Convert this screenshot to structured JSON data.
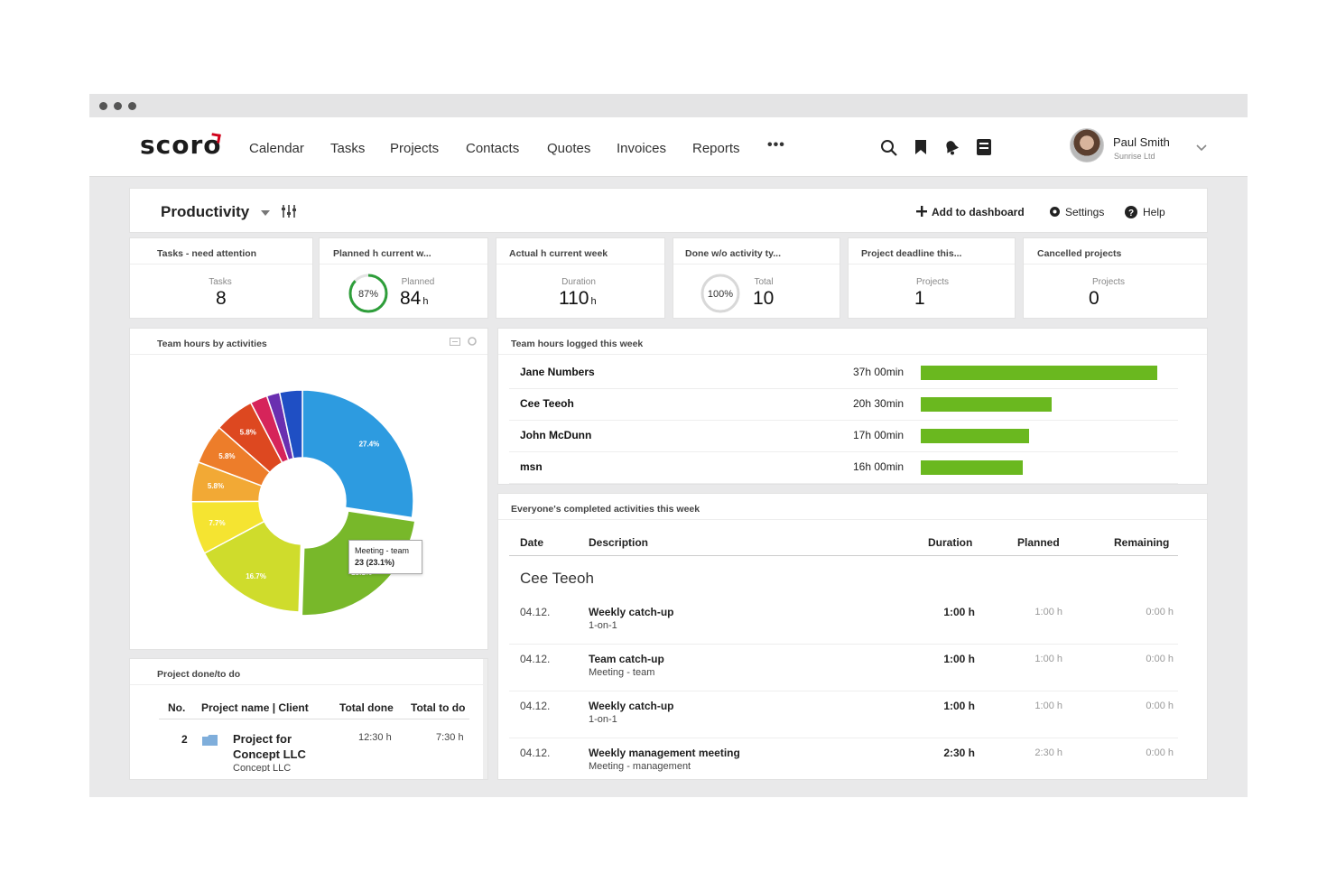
{
  "app": {
    "brand": "scoro",
    "accent_color": "#d0021b"
  },
  "nav": {
    "items": [
      {
        "label": "Calendar"
      },
      {
        "label": "Tasks"
      },
      {
        "label": "Projects"
      },
      {
        "label": "Contacts"
      },
      {
        "label": "Quotes"
      },
      {
        "label": "Invoices"
      },
      {
        "label": "Reports"
      }
    ],
    "more_label": "•••",
    "icons": [
      "search-icon",
      "bookmark-icon",
      "notification-icon",
      "calculator-icon"
    ]
  },
  "user": {
    "name": "Paul Smith",
    "company": "Sunrise Ltd"
  },
  "dashboard": {
    "title": "Productivity",
    "add_label": "Add to dashboard",
    "settings_label": "Settings",
    "help_label": "Help"
  },
  "kpis": [
    {
      "title": "Tasks - need attention",
      "label": "Tasks",
      "value": "8",
      "unit": ""
    },
    {
      "title": "Planned h current w...",
      "label": "Planned",
      "value": "84",
      "unit": "h",
      "ring_text": "87%",
      "ring_percent": 87
    },
    {
      "title": "Actual h current week",
      "label": "Duration",
      "value": "110",
      "unit": "h"
    },
    {
      "title": "Done w/o activity ty...",
      "label": "Total",
      "value": "10",
      "unit": "",
      "ring_text": "100%",
      "ring_percent": 100
    },
    {
      "title": "Project deadline this...",
      "label": "Projects",
      "value": "1",
      "unit": ""
    },
    {
      "title": "Cancelled projects",
      "label": "Projects",
      "value": "0",
      "unit": ""
    }
  ],
  "activities_widget": {
    "title": "Team hours by activities",
    "tooltip_line1": "Meeting - team",
    "tooltip_line2": "23 (23.1%)"
  },
  "chart_data": {
    "type": "pie",
    "donut": true,
    "slices": [
      {
        "label": "27.4%",
        "value": 27.4,
        "color": "#2d9be0"
      },
      {
        "label": "23.1%",
        "value": 23.1,
        "color": "#78b82a"
      },
      {
        "label": "16.7%",
        "value": 16.7,
        "color": "#cfdc2c"
      },
      {
        "label": "7.7%",
        "value": 7.7,
        "color": "#f5e431"
      },
      {
        "label": "5.8%",
        "value": 5.8,
        "color": "#f2a935"
      },
      {
        "label": "5.8%",
        "value": 5.8,
        "color": "#ed7d2a"
      },
      {
        "label": "5.8%",
        "value": 5.8,
        "color": "#dd4820"
      },
      {
        "label": "",
        "value": 2.5,
        "color": "#d6245a"
      },
      {
        "label": "",
        "value": 1.9,
        "color": "#6a2fb0"
      },
      {
        "label": "",
        "value": 3.3,
        "color": "#1f4fc4"
      }
    ]
  },
  "team_hours": {
    "title": "Team hours logged this week",
    "rows": [
      {
        "name": "Jane Numbers",
        "time": "37h 00min",
        "hours": 37
      },
      {
        "name": "Cee Teeoh",
        "time": "20h 30min",
        "hours": 20.5
      },
      {
        "name": "John McDunn",
        "time": "17h 00min",
        "hours": 17
      },
      {
        "name": "msn",
        "time": "16h 00min",
        "hours": 16
      }
    ],
    "bar_color": "#6ab81f"
  },
  "completed": {
    "title": "Everyone's completed activities this week",
    "columns": [
      "Date",
      "Description",
      "Duration",
      "Planned",
      "Remaining"
    ],
    "group": "Cee Teeoh",
    "rows": [
      {
        "date": "04.12.",
        "desc": "Weekly catch-up",
        "sub": "1-on-1",
        "duration": "1:00 h",
        "planned": "1:00 h",
        "remaining": "0:00 h"
      },
      {
        "date": "04.12.",
        "desc": "Team catch-up",
        "sub": "Meeting - team",
        "duration": "1:00 h",
        "planned": "1:00 h",
        "remaining": "0:00 h"
      },
      {
        "date": "04.12.",
        "desc": "Weekly catch-up",
        "sub": "1-on-1",
        "duration": "1:00 h",
        "planned": "1:00 h",
        "remaining": "0:00 h"
      },
      {
        "date": "04.12.",
        "desc": "Weekly management meeting",
        "sub": "Meeting - management",
        "duration": "2:30 h",
        "planned": "2:30 h",
        "remaining": "0:00 h"
      }
    ]
  },
  "projects_widget": {
    "title": "Project done/to do",
    "columns": [
      "No.",
      "Project name | Client",
      "Total done",
      "Total to do"
    ],
    "rows": [
      {
        "no": "2",
        "name_line1": "Project for",
        "name_line2": "Concept LLC",
        "client": "Concept LLC",
        "done": "12:30 h",
        "todo": "7:30 h"
      }
    ]
  }
}
